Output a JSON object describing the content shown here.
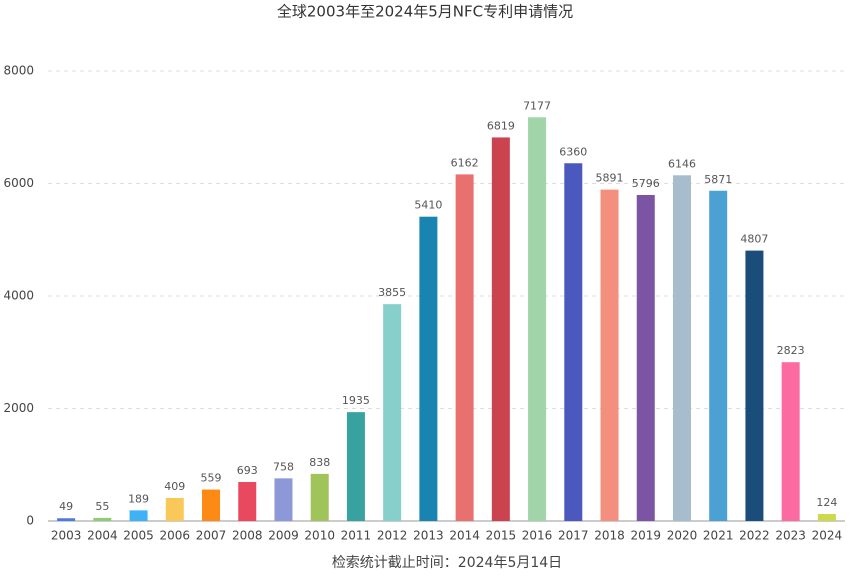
{
  "chart_data": {
    "type": "bar",
    "title": "全球2003年至2024年5月NFC专利申请情况",
    "x_label": "检索统计截止时间：2024年5月14日",
    "categories": [
      "2003",
      "2004",
      "2005",
      "2006",
      "2007",
      "2008",
      "2009",
      "2010",
      "2011",
      "2012",
      "2013",
      "2014",
      "2015",
      "2016",
      "2017",
      "2018",
      "2019",
      "2020",
      "2021",
      "2022",
      "2023",
      "2024"
    ],
    "values": [
      49,
      55,
      189,
      409,
      559,
      693,
      758,
      838,
      1935,
      3855,
      5410,
      6162,
      6819,
      7177,
      6360,
      5891,
      5796,
      6146,
      5871,
      4807,
      2823,
      124
    ],
    "colors": [
      "#4e79e0",
      "#91cc75",
      "#3fb1f5",
      "#fac858",
      "#fc8a15",
      "#e8495f",
      "#8d98d8",
      "#a0c35a",
      "#37a2a0",
      "#87cfca",
      "#1a84b0",
      "#e8706e",
      "#cb434f",
      "#a1d4a8",
      "#4b58be",
      "#f48f80",
      "#7b54a3",
      "#a7bccd",
      "#4ba0d4",
      "#1a4d7a",
      "#fb6aa0",
      "#ccd94a"
    ],
    "ylim": [
      0,
      8000
    ],
    "yticks": [
      0,
      2000,
      4000,
      6000,
      8000
    ],
    "grid": true
  }
}
